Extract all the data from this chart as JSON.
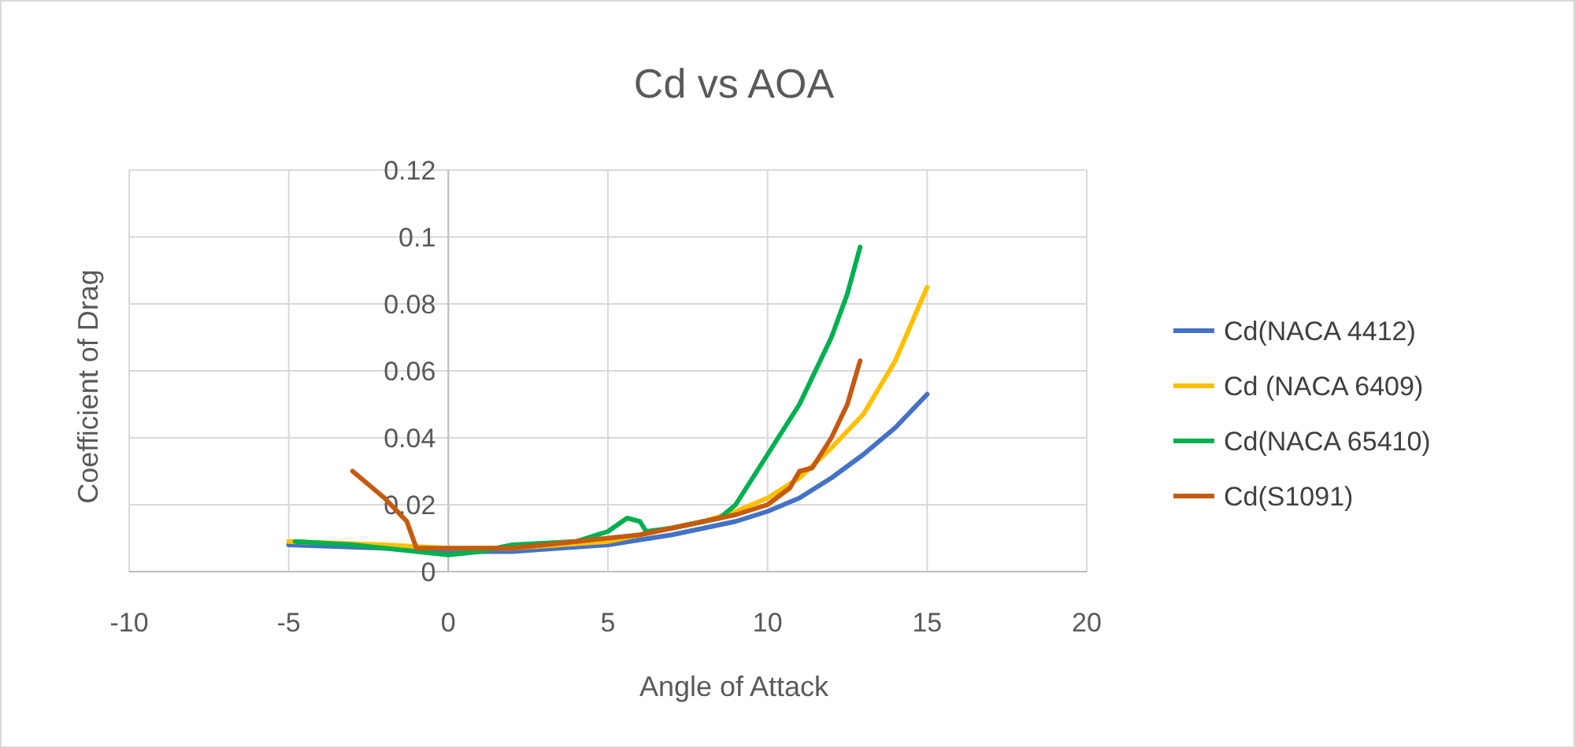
{
  "chart_data": {
    "type": "line",
    "title": "Cd vs AOA",
    "xlabel": "Angle of Attack",
    "ylabel": "Coefficient of Drag",
    "xlim": [
      -10,
      20
    ],
    "xticks": [
      -10,
      -5,
      0,
      5,
      10,
      15,
      20
    ],
    "ylim": [
      0,
      0.12
    ],
    "yticks": [
      0,
      0.02,
      0.04,
      0.06,
      0.08,
      0.1,
      0.12
    ],
    "grid": true,
    "legend": "right",
    "line_style": "solid",
    "marker": "none",
    "series": [
      {
        "name": "Cd(NACA 4412)",
        "color": "#4472c4",
        "x": [
          -5,
          -2,
          0,
          2,
          5,
          7,
          8,
          9,
          10,
          11,
          12,
          13,
          14,
          15
        ],
        "values": [
          0.008,
          0.007,
          0.006,
          0.006,
          0.008,
          0.011,
          0.013,
          0.015,
          0.018,
          0.022,
          0.028,
          0.035,
          0.043,
          0.053
        ]
      },
      {
        "name": "Cd (NACA 6409)",
        "color": "#ffc000",
        "x": [
          -5,
          -2,
          0,
          2,
          5,
          7,
          8,
          9,
          10,
          11,
          12,
          13,
          14,
          15
        ],
        "values": [
          0.009,
          0.008,
          0.007,
          0.007,
          0.009,
          0.013,
          0.015,
          0.018,
          0.022,
          0.028,
          0.037,
          0.047,
          0.063,
          0.085
        ]
      },
      {
        "name": "Cd(NACA 65410)",
        "color": "#00b050",
        "x": [
          -4.8,
          -3,
          -1,
          0,
          1,
          2,
          4,
          5,
          5.6,
          6,
          6.2,
          7,
          8.5,
          9,
          10,
          11,
          12,
          12.5,
          12.9
        ],
        "values": [
          0.009,
          0.008,
          0.006,
          0.005,
          0.006,
          0.008,
          0.009,
          0.012,
          0.016,
          0.015,
          0.012,
          0.013,
          0.016,
          0.02,
          0.035,
          0.05,
          0.07,
          0.083,
          0.097
        ]
      },
      {
        "name": "Cd(S1091)",
        "color": "#c55a11",
        "x": [
          -3,
          -2,
          -1.3,
          -1,
          0,
          2,
          4,
          6,
          8,
          9,
          10,
          10.7,
          11,
          11.4,
          12,
          12.5,
          12.9
        ],
        "values": [
          0.03,
          0.022,
          0.015,
          0.007,
          0.007,
          0.007,
          0.009,
          0.011,
          0.015,
          0.017,
          0.02,
          0.025,
          0.03,
          0.031,
          0.04,
          0.05,
          0.063
        ]
      }
    ]
  }
}
